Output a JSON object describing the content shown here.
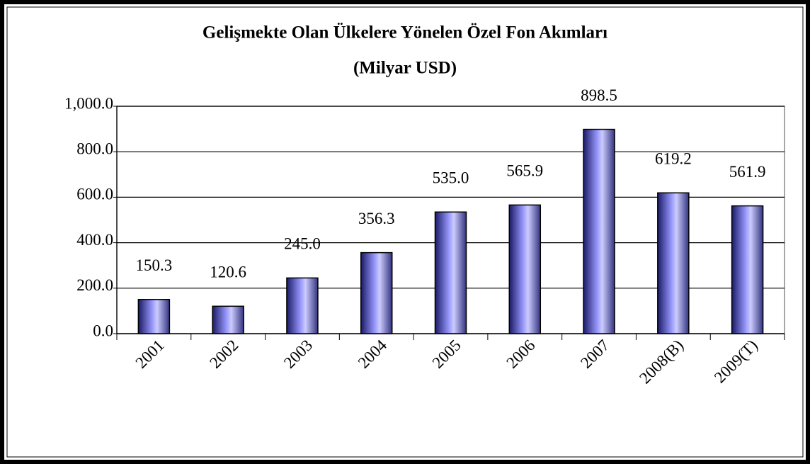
{
  "chart_data": {
    "type": "bar",
    "title": "Gelişmekte Olan Ülkelere Yönelen Özel Fon Akımları",
    "subtitle": "(Milyar USD)",
    "categories": [
      "2001",
      "2002",
      "2003",
      "2004",
      "2005",
      "2006",
      "2007",
      "2008(B)",
      "2009(T)"
    ],
    "values": [
      150.3,
      120.6,
      245.0,
      356.3,
      535.0,
      565.9,
      898.5,
      619.2,
      561.9
    ],
    "value_labels": [
      "150.3",
      "120.6",
      "245.0",
      "356.3",
      "535.0",
      "565.9",
      "898.5",
      "619.2",
      "561.9"
    ],
    "color": "#9999ff",
    "ylim": [
      0,
      1000
    ],
    "yticks": [
      {
        "value": 0,
        "label": "0.0"
      },
      {
        "value": 200,
        "label": "200.0"
      },
      {
        "value": 400,
        "label": "400.0"
      },
      {
        "value": 600,
        "label": "600.0"
      },
      {
        "value": 800,
        "label": "800.0"
      },
      {
        "value": 1000,
        "label": "1,000.0"
      }
    ],
    "grid": true
  }
}
